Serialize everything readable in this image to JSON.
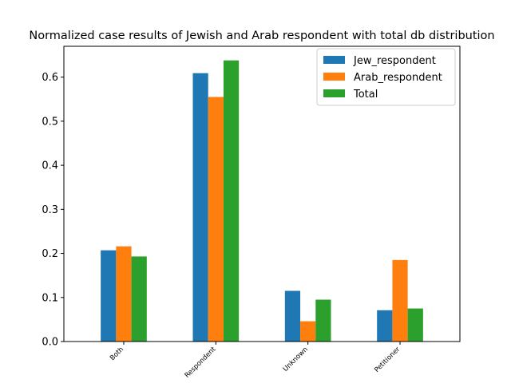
{
  "chart_data": {
    "type": "bar",
    "title": "Normalized case results of Jewish and Arab respondent with total db distribution",
    "xlabel": "",
    "ylabel": "",
    "categories": [
      "Both",
      "Respondent",
      "Unknown",
      "Petitioner"
    ],
    "series": [
      {
        "name": "Jew_respondent",
        "color": "#1f77b4",
        "values": [
          0.207,
          0.609,
          0.115,
          0.071
        ]
      },
      {
        "name": "Arab_respondent",
        "color": "#ff7f0e",
        "values": [
          0.216,
          0.555,
          0.046,
          0.185
        ]
      },
      {
        "name": "Total",
        "color": "#2ca02c",
        "values": [
          0.193,
          0.638,
          0.095,
          0.075
        ]
      }
    ],
    "ylim": [
      0,
      0.67
    ],
    "yticks": [
      "0.0",
      "0.1",
      "0.2",
      "0.3",
      "0.4",
      "0.5",
      "0.6"
    ],
    "grid": false,
    "legend_position": "top-right"
  }
}
